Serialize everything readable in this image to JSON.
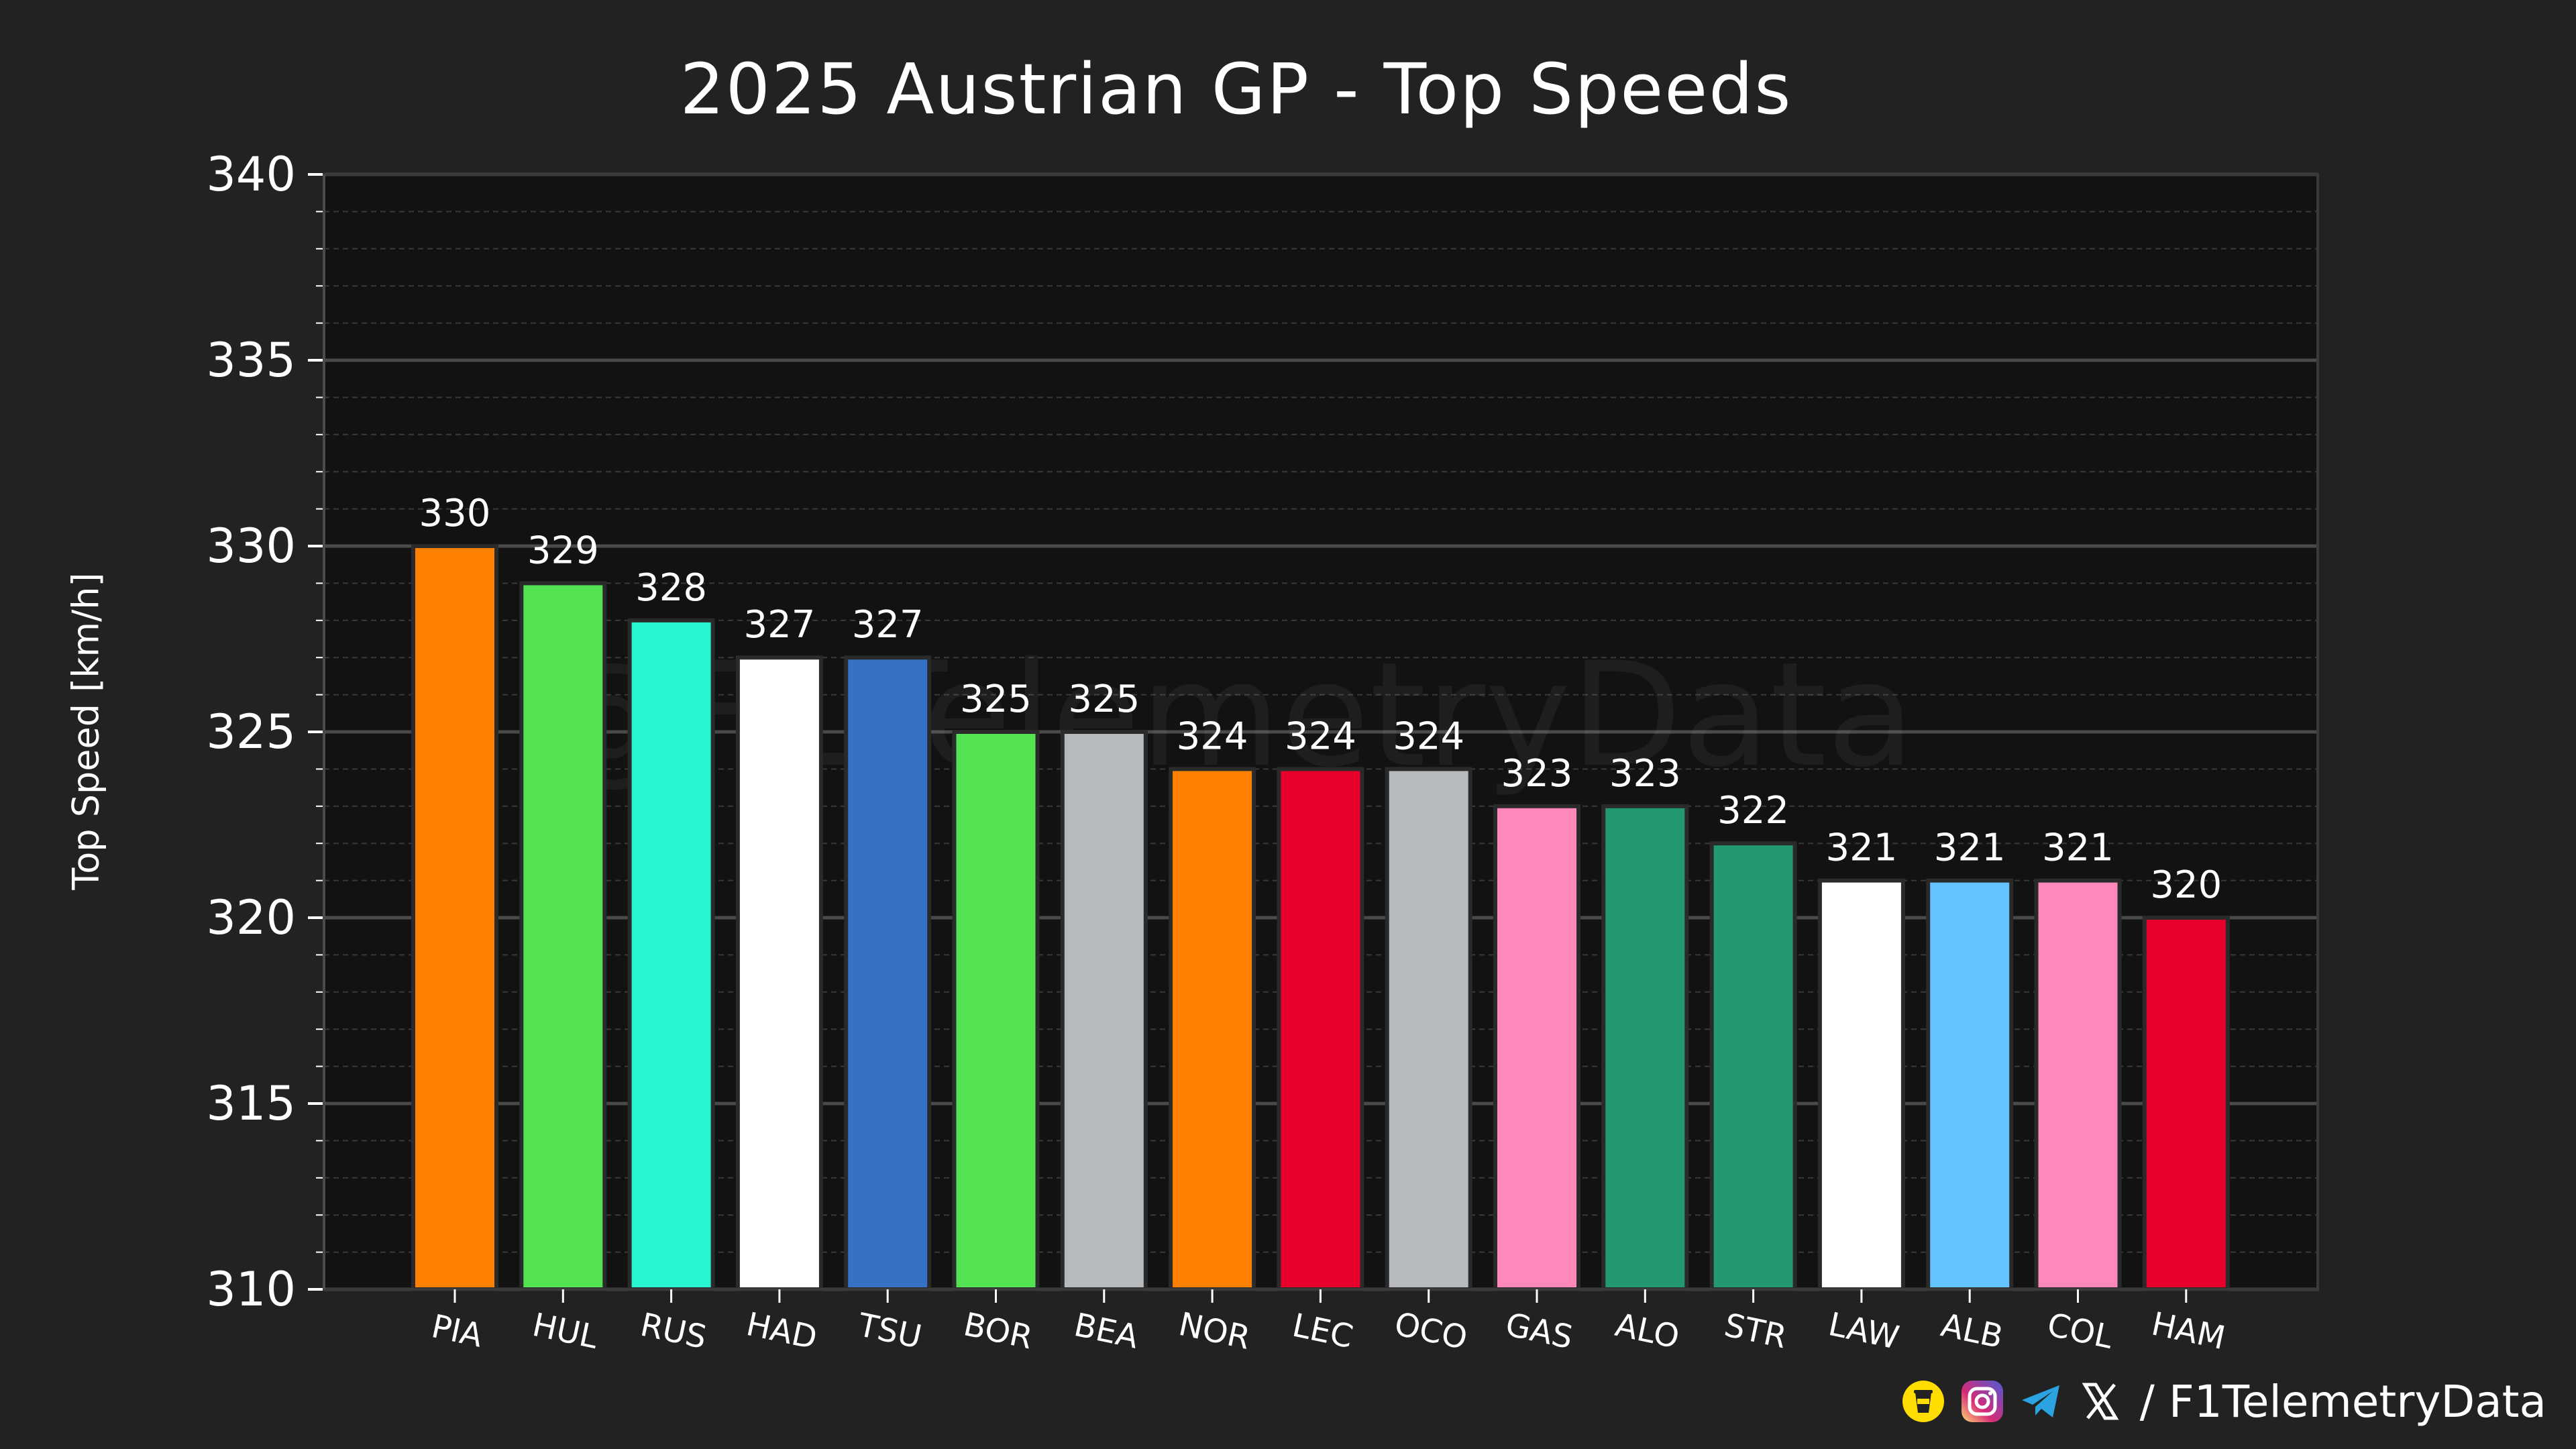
{
  "chart_data": {
    "type": "bar",
    "title": "2025 Austrian GP - Top Speeds",
    "xlabel": "",
    "ylabel": "Top Speed [km/h]",
    "ylim": [
      310,
      340
    ],
    "yticks": [
      310,
      315,
      320,
      325,
      330,
      335,
      340
    ],
    "grid": true,
    "categories": [
      "PIA",
      "HUL",
      "RUS",
      "HAD",
      "TSU",
      "BOR",
      "BEA",
      "NOR",
      "LEC",
      "OCO",
      "GAS",
      "ALO",
      "STR",
      "LAW",
      "ALB",
      "COL",
      "HAM"
    ],
    "values": [
      330,
      329,
      328,
      327,
      327,
      325,
      325,
      324,
      324,
      324,
      323,
      323,
      322,
      321,
      321,
      321,
      320
    ],
    "colors": [
      "#ff8000",
      "#52e252",
      "#27f4d2",
      "#ffffff",
      "#3671c6",
      "#52e252",
      "#b6babd",
      "#ff8000",
      "#e8002d",
      "#b6babd",
      "#ff87bc",
      "#229971",
      "#229971",
      "#ffffff",
      "#64c4ff",
      "#ff87bc",
      "#e8002d"
    ],
    "watermark": "@F1TelemetryData"
  },
  "footer": {
    "handle": "/ F1TelemetryData",
    "icons": [
      "coffee-icon",
      "instagram-icon",
      "telegram-icon",
      "x-icon"
    ]
  }
}
